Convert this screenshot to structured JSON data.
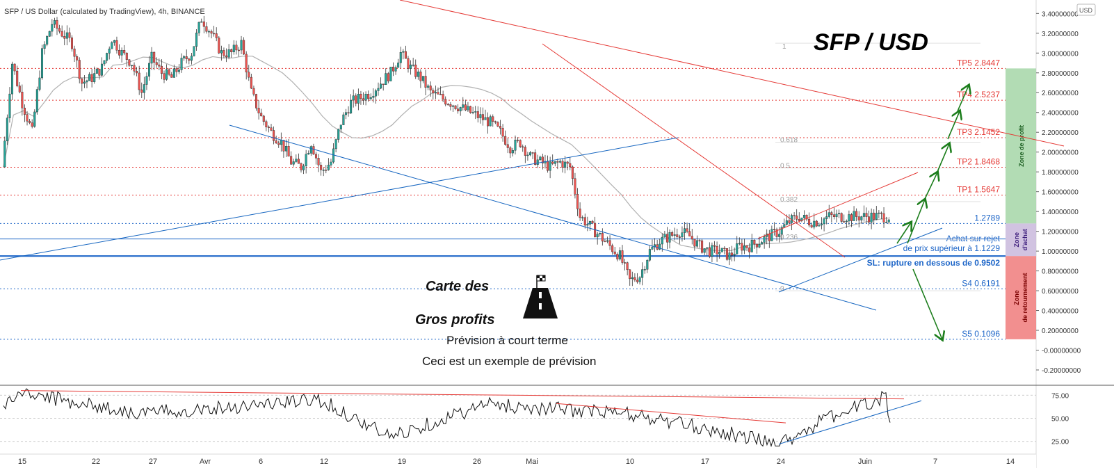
{
  "header": {
    "symbol_line": "SFP / US Dollar (calculated by TradingView), 4h, BINANCE"
  },
  "currency_badge": "USD",
  "big_title": "SFP / USD",
  "brand": {
    "line1": "Carte des",
    "line2": "Gros profits"
  },
  "forecast": {
    "title": "Prévision à court terme",
    "note": "Ceci est un exemple de prévision"
  },
  "levels": [
    {
      "label": "TP5",
      "value": 2.8447,
      "text": "TP5 2.8447",
      "style": "red"
    },
    {
      "label": "TP4",
      "value": 2.5237,
      "text": "TP4 2.5237",
      "style": "red"
    },
    {
      "label": "TP3",
      "value": 2.1452,
      "text": "TP3 2.1452",
      "style": "red"
    },
    {
      "label": "TP2",
      "value": 1.8468,
      "text": "TP2 1.8468",
      "style": "red"
    },
    {
      "label": "TP1",
      "value": 1.5647,
      "text": "TP1 1.5647",
      "style": "red"
    },
    {
      "label": "",
      "value": 1.2789,
      "text": "1.2789",
      "style": "blue"
    },
    {
      "label": "",
      "value": 1.1229,
      "text": "",
      "style": "blue-solid"
    },
    {
      "label": "SL",
      "value": 0.9502,
      "text": "SL: rupture en dessous de 0.9502",
      "style": "blue-bold"
    },
    {
      "label": "S4",
      "value": 0.6191,
      "text": "S4 0.6191",
      "style": "blue"
    },
    {
      "label": "S5",
      "value": 0.1096,
      "text": "S5 0.1096",
      "style": "blue"
    }
  ],
  "buy_note": {
    "line1": "Achat sur rejet",
    "line2": "de prix supérieur à 1.1229"
  },
  "zones": [
    {
      "label": "Zone de profit",
      "from": 1.2789,
      "to": 2.8447,
      "color": "#a5d6a7"
    },
    {
      "label": "Zone d'achat",
      "from": 0.9502,
      "to": 1.2789,
      "color": "#c9b8dc"
    },
    {
      "label": "Zone de retournement",
      "from": 0.1096,
      "to": 0.9502,
      "color": "#f07b7b"
    }
  ],
  "fib": [
    {
      "label": "1",
      "value": 3.1
    },
    {
      "label": "0.618",
      "value": 2.1
    },
    {
      "label": "0.5",
      "value": 1.84
    },
    {
      "label": "0.382",
      "value": 1.5
    },
    {
      "label": "0.236",
      "value": 1.12
    },
    {
      "label": "0",
      "value": 0.6
    }
  ],
  "colors": {
    "up": "#26a69a",
    "down": "#ef5350",
    "red_line": "#e53935",
    "blue_line": "#1565c0",
    "arrow": "#1b7d1b",
    "ma": "#b0b0b0"
  },
  "chart_data": {
    "type": "line",
    "title": "SFP / US Dollar (calculated by TradingView), 4h, BINANCE",
    "price_axis": {
      "ylim": [
        -0.2,
        3.4
      ],
      "ticks": [
        "3.40000000",
        "3.20000000",
        "3.00000000",
        "2.80000000",
        "2.60000000",
        "2.40000000",
        "2.20000000",
        "2.00000000",
        "1.80000000",
        "1.60000000",
        "1.40000000",
        "1.20000000",
        "1.00000000",
        "0.80000000",
        "0.60000000",
        "0.40000000",
        "0.20000000",
        "-0.00000000",
        "-0.20000000"
      ]
    },
    "time_axis": {
      "ticks": [
        "15",
        "22",
        "27",
        "Avr",
        "6",
        "12",
        "19",
        "26",
        "Mai",
        "10",
        "17",
        "24",
        "Juin",
        "7",
        "14"
      ]
    },
    "series": [
      {
        "name": "",
        "x": [
          0,
          1,
          2,
          3,
          4,
          5,
          6,
          7,
          8,
          9,
          10,
          11,
          12,
          13,
          14,
          15,
          16,
          17,
          18,
          19,
          20,
          21,
          22,
          23,
          24,
          25,
          26,
          27,
          28,
          29,
          30,
          31,
          32,
          33,
          34,
          35,
          36,
          37,
          38,
          39,
          40,
          41,
          42,
          43,
          44,
          45,
          46,
          47,
          48,
          49,
          50,
          51,
          52,
          53,
          54,
          55,
          56,
          57,
          58,
          59,
          60,
          61,
          62,
          63,
          64,
          65,
          66,
          67,
          68,
          69,
          70,
          71,
          72,
          73,
          74,
          75,
          76,
          77,
          78,
          79,
          80,
          81,
          82,
          83,
          84,
          85,
          86,
          87,
          88,
          89
        ],
        "values": [
          1.85,
          2.9,
          2.5,
          2.2,
          3.0,
          3.3,
          3.2,
          3.1,
          2.7,
          2.75,
          2.85,
          3.15,
          3.0,
          2.9,
          2.6,
          2.95,
          2.8,
          2.75,
          2.9,
          3.0,
          3.35,
          3.2,
          3.0,
          3.0,
          3.1,
          2.6,
          2.35,
          2.2,
          2.1,
          1.9,
          1.85,
          2.1,
          1.8,
          1.9,
          2.3,
          2.5,
          2.55,
          2.6,
          2.7,
          2.8,
          3.0,
          2.85,
          2.75,
          2.6,
          2.55,
          2.5,
          2.45,
          2.4,
          2.35,
          2.3,
          2.2,
          2.05,
          2.1,
          1.95,
          1.9,
          1.85,
          1.9,
          1.85,
          1.35,
          1.25,
          1.15,
          1.05,
          0.95,
          0.7,
          0.75,
          1.0,
          1.1,
          1.15,
          1.2,
          1.15,
          1.05,
          1.0,
          1.0,
          0.95,
          1.05,
          1.05,
          1.1,
          1.15,
          1.2,
          1.3,
          1.35,
          1.3,
          1.3,
          1.35,
          1.35,
          1.35,
          1.35,
          1.35,
          1.35,
          1.35
        ]
      }
    ],
    "rsi": {
      "ticks": [
        "75.00",
        "50.00",
        "25.00"
      ],
      "ylim": [
        15,
        85
      ]
    }
  }
}
